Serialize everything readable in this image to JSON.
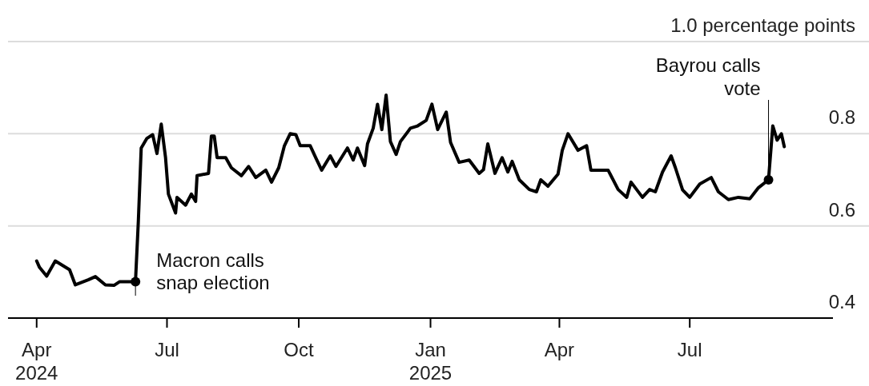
{
  "chart_data": {
    "type": "line",
    "xlim": [
      "2024-03-12",
      "2025-10-09"
    ],
    "ylim": [
      0.4,
      1.0
    ],
    "xticks": [
      {
        "value": "2024-04-01",
        "label": "Apr 2024"
      },
      {
        "value": "2024-07-01",
        "label": "Jul"
      },
      {
        "value": "2024-10-01",
        "label": "Oct"
      },
      {
        "value": "2025-01-01",
        "label": "Jan 2025"
      },
      {
        "value": "2025-04-01",
        "label": "Apr"
      },
      {
        "value": "2025-07-01",
        "label": "Jul"
      }
    ],
    "yticks": [
      0.4,
      0.6,
      0.8,
      {
        "value": 1.0,
        "label": "1.0 percentage points"
      }
    ],
    "grid": "y",
    "line_style": "solid",
    "annotations": [
      {
        "text": "Macron calls snap election",
        "x": "2024-06-09",
        "y": 0.479
      },
      {
        "text": "Bayrou calls vote",
        "x": "2025-08-25",
        "y": 0.7
      }
    ],
    "series": [
      {
        "color": "#000000",
        "x": [
          "2024-04-01",
          "2024-04-03",
          "2024-04-08",
          "2024-04-14",
          "2024-04-24",
          "2024-04-28",
          "2024-05-07",
          "2024-05-12",
          "2024-05-19",
          "2024-05-25",
          "2024-05-29",
          "2024-06-09",
          "2024-06-11",
          "2024-06-13",
          "2024-06-17",
          "2024-06-21",
          "2024-06-24",
          "2024-06-27",
          "2024-06-30",
          "2024-07-02",
          "2024-07-07",
          "2024-07-08",
          "2024-07-14",
          "2024-07-18",
          "2024-07-21",
          "2024-07-22",
          "2024-07-30",
          "2024-08-01",
          "2024-08-03",
          "2024-08-05",
          "2024-08-11",
          "2024-08-15",
          "2024-08-22",
          "2024-08-27",
          "2024-09-01",
          "2024-09-08",
          "2024-09-12",
          "2024-09-17",
          "2024-09-21",
          "2024-09-25",
          "2024-09-29",
          "2024-10-02",
          "2024-10-09",
          "2024-10-13",
          "2024-10-17",
          "2024-10-23",
          "2024-10-27",
          "2024-11-04",
          "2024-11-08",
          "2024-11-11",
          "2024-11-16",
          "2024-11-18",
          "2024-11-22",
          "2024-11-25",
          "2024-11-28",
          "2024-12-01",
          "2024-12-04",
          "2024-12-08",
          "2024-12-11",
          "2024-12-18",
          "2024-12-23",
          "2024-12-29",
          "2025-01-02",
          "2025-01-06",
          "2025-01-12",
          "2025-01-15",
          "2025-01-21",
          "2025-01-28",
          "2025-02-04",
          "2025-02-07",
          "2025-02-10",
          "2025-02-15",
          "2025-02-20",
          "2025-02-24",
          "2025-02-27",
          "2025-03-04",
          "2025-03-11",
          "2025-03-16",
          "2025-03-19",
          "2025-03-24",
          "2025-03-31",
          "2025-04-03",
          "2025-04-07",
          "2025-04-14",
          "2025-04-20",
          "2025-04-23",
          "2025-05-05",
          "2025-05-12",
          "2025-05-18",
          "2025-05-21",
          "2025-05-29",
          "2025-06-03",
          "2025-06-07",
          "2025-06-12",
          "2025-06-18",
          "2025-06-21",
          "2025-06-26",
          "2025-07-01",
          "2025-07-08",
          "2025-07-16",
          "2025-07-21",
          "2025-07-28",
          "2025-08-04",
          "2025-08-12",
          "2025-08-18",
          "2025-08-25",
          "2025-08-28",
          "2025-08-31",
          "2025-09-03",
          "2025-09-05"
        ],
        "values": [
          0.524,
          0.51,
          0.491,
          0.524,
          0.505,
          0.472,
          0.483,
          0.49,
          0.472,
          0.471,
          0.479,
          0.479,
          0.61,
          0.769,
          0.79,
          0.798,
          0.757,
          0.821,
          0.748,
          0.669,
          0.628,
          0.662,
          0.645,
          0.669,
          0.653,
          0.709,
          0.714,
          0.795,
          0.795,
          0.748,
          0.748,
          0.726,
          0.709,
          0.729,
          0.705,
          0.721,
          0.695,
          0.726,
          0.774,
          0.8,
          0.798,
          0.774,
          0.774,
          0.747,
          0.721,
          0.752,
          0.729,
          0.769,
          0.743,
          0.769,
          0.731,
          0.778,
          0.812,
          0.864,
          0.809,
          0.884,
          0.783,
          0.755,
          0.783,
          0.812,
          0.817,
          0.829,
          0.864,
          0.809,
          0.847,
          0.781,
          0.738,
          0.743,
          0.714,
          0.722,
          0.778,
          0.714,
          0.748,
          0.717,
          0.74,
          0.7,
          0.679,
          0.674,
          0.7,
          0.686,
          0.712,
          0.764,
          0.8,
          0.764,
          0.774,
          0.721,
          0.721,
          0.679,
          0.662,
          0.695,
          0.662,
          0.679,
          0.674,
          0.717,
          0.752,
          0.726,
          0.678,
          0.662,
          0.691,
          0.705,
          0.674,
          0.657,
          0.662,
          0.659,
          0.683,
          0.7,
          0.817,
          0.786,
          0.8,
          0.772
        ]
      }
    ]
  }
}
